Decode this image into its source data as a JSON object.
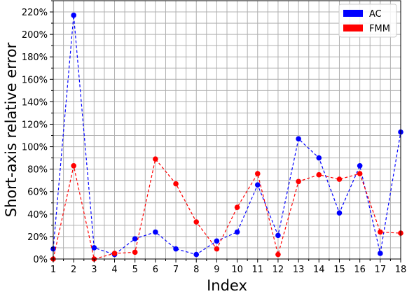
{
  "chart_data": {
    "type": "line",
    "xlabel": "Index",
    "ylabel": "Short-axis relative error",
    "x": [
      1,
      2,
      3,
      4,
      5,
      6,
      7,
      8,
      9,
      10,
      11,
      12,
      13,
      14,
      15,
      16,
      17,
      18
    ],
    "xlim": [
      1,
      18
    ],
    "ylim": [
      0,
      230
    ],
    "y_tick_values": [
      0,
      20,
      40,
      60,
      80,
      100,
      120,
      140,
      160,
      180,
      200,
      220
    ],
    "y_tick_labels": [
      "0%",
      "20%",
      "40%",
      "60%",
      "80%",
      "100%",
      "120%",
      "140%",
      "160%",
      "180%",
      "200%",
      "220%"
    ],
    "x_tick_labels": [
      "1",
      "2",
      "3",
      "4",
      "5",
      "6",
      "7",
      "8",
      "9",
      "10",
      "11",
      "12",
      "13",
      "14",
      "15",
      "16",
      "17",
      "18"
    ],
    "grid": true,
    "minor_grid": true,
    "legend_position": "top-right",
    "series": [
      {
        "name": "AC",
        "color": "#0000ff",
        "line_style": "dashed",
        "marker": "circle",
        "values": [
          9,
          217,
          10,
          4,
          18,
          24,
          9,
          4,
          16,
          24,
          66,
          21,
          107,
          90,
          41,
          83,
          5,
          113
        ]
      },
      {
        "name": "FMM",
        "color": "#ff0000",
        "line_style": "dashed",
        "marker": "circle",
        "values": [
          0,
          83,
          0,
          5,
          6,
          89,
          67,
          33,
          9,
          46,
          76,
          4,
          69,
          75,
          71,
          76,
          24,
          23
        ]
      }
    ]
  }
}
